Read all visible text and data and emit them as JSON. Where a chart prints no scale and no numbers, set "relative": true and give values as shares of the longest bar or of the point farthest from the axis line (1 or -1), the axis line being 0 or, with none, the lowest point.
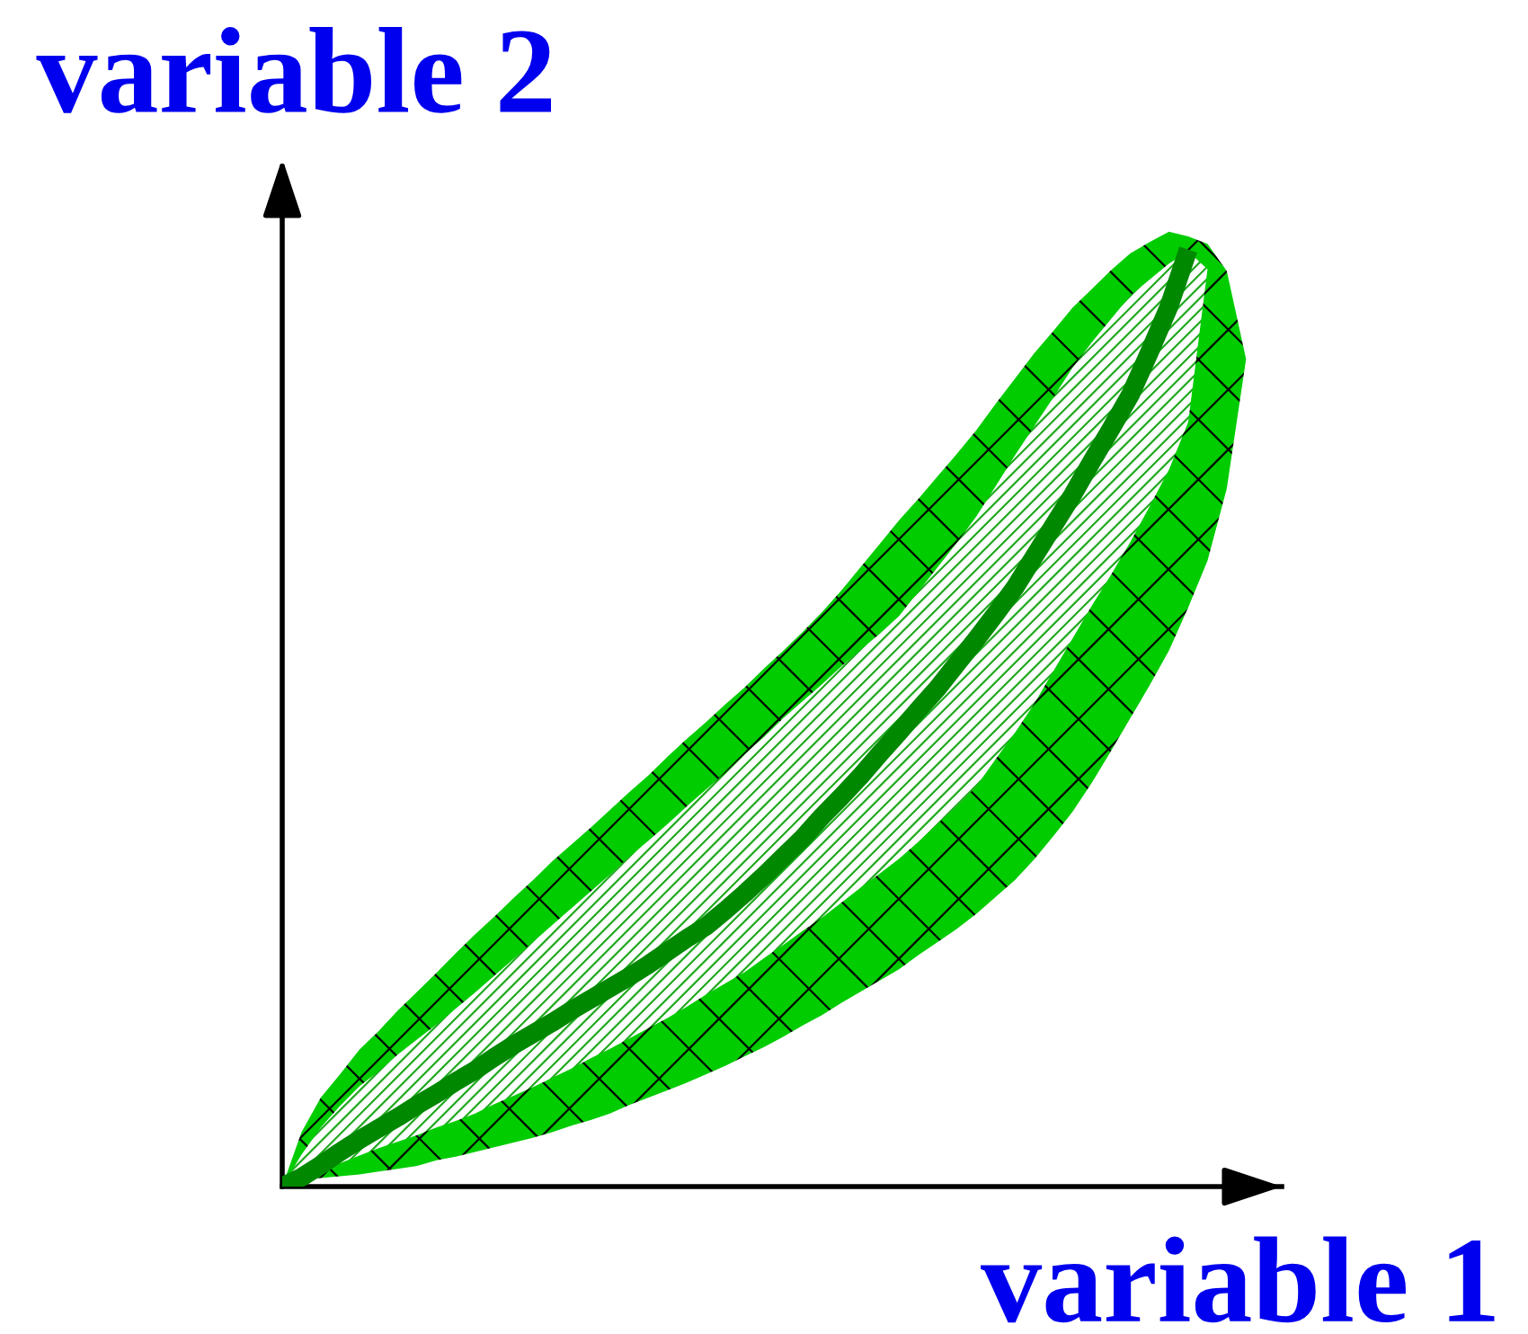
{
  "chart_data": {
    "type": "line",
    "relative": true,
    "xlabel": "variable 1",
    "ylabel": "variable 2",
    "categories": [
      null,
      null,
      null,
      null,
      null,
      null,
      null,
      null,
      null,
      null,
      null,
      null,
      null,
      null,
      null,
      null,
      null,
      null,
      null,
      null,
      null,
      null,
      null,
      null,
      null,
      null,
      null,
      null,
      null,
      null,
      null,
      null,
      null,
      null,
      null,
      null,
      null,
      null,
      null,
      null,
      null,
      null,
      null,
      null,
      null,
      null,
      null,
      null,
      null,
      null,
      null
    ],
    "series": [
      {
        "color": "#00cc00",
        "values": [
          null,
          null,
          null,
          null,
          null,
          null,
          null,
          null,
          null,
          null,
          null,
          null,
          null,
          null,
          null,
          null,
          null,
          null,
          null,
          null,
          null,
          null,
          null,
          null,
          null,
          null,
          null,
          null,
          null,
          null,
          null,
          null,
          null,
          null,
          null,
          null,
          null,
          null,
          null,
          null,
          null,
          null,
          null,
          null,
          null,
          null,
          null,
          null,
          null,
          null,
          null
        ],
        "upper": [
          0,
          0.058,
          0.095,
          0.12,
          0.146,
          0.166,
          0.188,
          0.208,
          0.228,
          0.249,
          0.269,
          0.288,
          0.308,
          0.327,
          0.347,
          0.365,
          0.383,
          0.402,
          0.421,
          0.439,
          0.459,
          0.478,
          0.496,
          0.515,
          0.533,
          0.553,
          0.572,
          0.592,
          0.613,
          0.636,
          0.661,
          0.686,
          0.711,
          0.734,
          0.758,
          0.782,
          0.807,
          0.835,
          0.862,
          0.889,
          0.913,
          0.938,
          0.958,
          0.978,
          0.996,
          1.008,
          1.019,
          1.014,
          1.006,
          0.977,
          0.883
        ],
        "lower": [
          0,
          0.007,
          0.009,
          0.011,
          0.013,
          0.016,
          0.019,
          0.022,
          0.028,
          0.032,
          0.037,
          0.042,
          0.047,
          0.052,
          0.058,
          0.065,
          0.071,
          0.078,
          0.087,
          0.095,
          0.103,
          0.111,
          0.12,
          0.129,
          0.139,
          0.149,
          0.16,
          0.172,
          0.183,
          0.196,
          0.208,
          0.22,
          0.232,
          0.247,
          0.261,
          0.275,
          0.291,
          0.309,
          0.327,
          0.349,
          0.374,
          0.4,
          0.431,
          0.465,
          0.5,
          0.535,
          0.572,
          0.618,
          0.668,
          0.745,
          0.883
        ]
      },
      {
        "color": "#22aa22",
        "values": [
          null,
          null,
          null,
          null,
          null,
          null,
          null,
          null,
          null,
          null,
          null,
          null,
          null,
          null,
          null,
          null,
          null,
          null,
          null,
          null,
          null,
          null,
          null,
          null,
          null,
          null,
          null,
          null,
          null,
          null,
          null,
          null,
          null,
          null,
          null,
          null,
          null,
          null,
          null,
          null,
          null,
          null,
          null,
          null,
          null,
          null,
          null,
          null,
          null,
          null,
          null
        ],
        "upper": [
          0,
          0.034,
          0.063,
          0.086,
          0.107,
          0.123,
          0.141,
          0.157,
          0.173,
          0.19,
          0.207,
          0.225,
          0.243,
          0.261,
          0.279,
          0.297,
          0.315,
          0.333,
          0.352,
          0.369,
          0.387,
          0.406,
          0.424,
          0.442,
          0.462,
          0.48,
          0.5,
          0.518,
          0.536,
          0.555,
          0.573,
          0.59,
          0.609,
          0.635,
          0.661,
          0.687,
          0.715,
          0.747,
          0.78,
          0.811,
          0.842,
          0.874,
          0.901,
          0.926,
          0.951,
          0.968,
          0.985,
          0.998,
          0.979,
          null,
          null
        ],
        "lower": [
          0,
          0.01,
          0.019,
          0.025,
          0.033,
          0.041,
          0.048,
          0.055,
          0.063,
          0.07,
          0.078,
          0.088,
          0.097,
          0.106,
          0.116,
          0.126,
          0.137,
          0.147,
          0.158,
          0.169,
          0.18,
          0.192,
          0.205,
          0.217,
          0.229,
          0.244,
          0.258,
          0.273,
          0.287,
          0.303,
          0.319,
          0.334,
          0.35,
          0.368,
          0.387,
          0.406,
          0.427,
          0.456,
          0.484,
          0.515,
          0.55,
          0.585,
          0.62,
          0.653,
          0.688,
          0.726,
          0.765,
          0.816,
          0.979,
          null,
          null
        ]
      },
      {
        "color": "#008800",
        "values": [
          0,
          0.01,
          0.023,
          0.037,
          0.05,
          0.062,
          0.074,
          0.087,
          0.099,
          0.112,
          0.124,
          0.138,
          0.151,
          0.163,
          0.175,
          0.188,
          0.2,
          0.212,
          0.224,
          0.237,
          0.251,
          0.265,
          0.278,
          0.295,
          0.313,
          0.332,
          0.352,
          0.372,
          0.395,
          0.416,
          0.438,
          0.462,
          0.485,
          0.509,
          0.532,
          0.558,
          0.584,
          0.611,
          0.639,
          0.672,
          0.705,
          0.738,
          0.774,
          0.809,
          0.845,
          0.891,
          0.939,
          1,
          null,
          null,
          null
        ]
      }
    ]
  }
}
